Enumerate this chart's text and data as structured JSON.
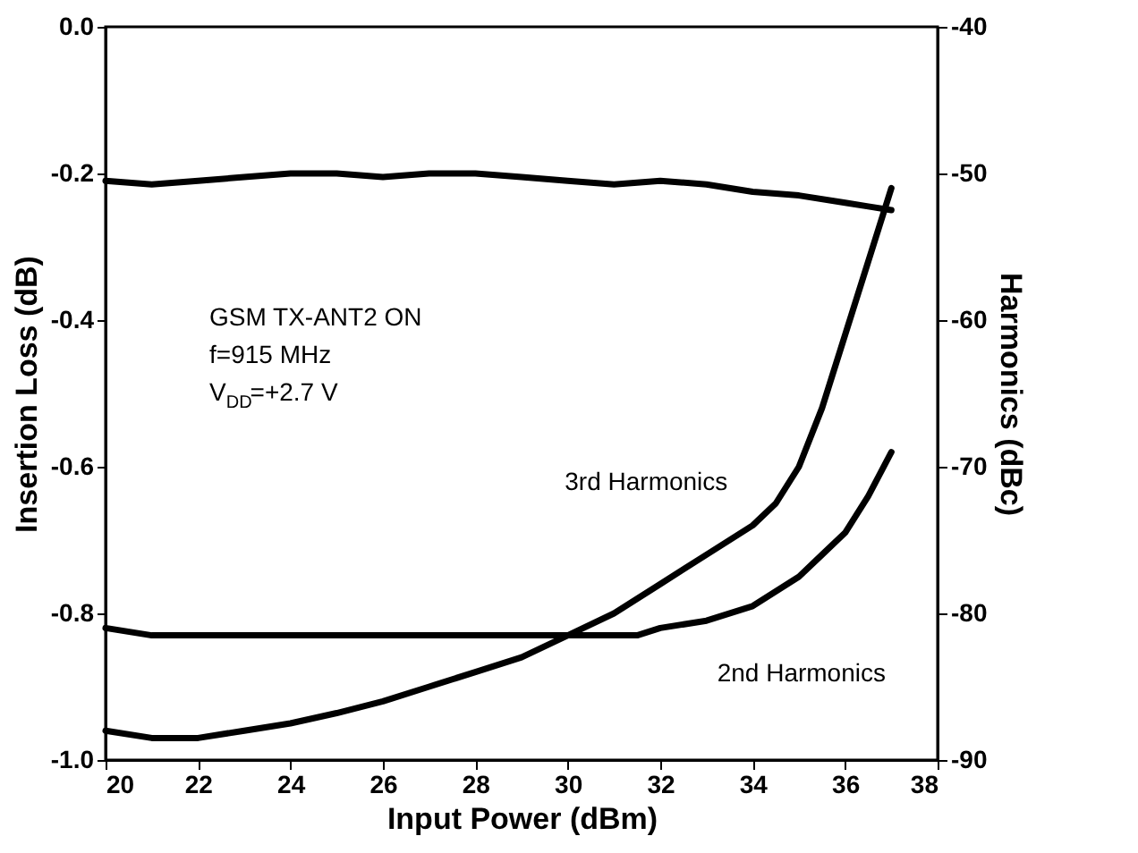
{
  "chart_data": {
    "type": "line",
    "xlabel": "Input Power (dBm)",
    "ylabel": "Insertion Loss (dB)",
    "y2label": "Harmonics (dBc)",
    "xlim": [
      20,
      38
    ],
    "xticks": [
      20,
      22,
      24,
      26,
      28,
      30,
      32,
      34,
      36,
      38
    ],
    "ylim": [
      -1.0,
      0.0
    ],
    "yticks": [
      {
        "value": -1.0,
        "label": "-1.0"
      },
      -0.8,
      -0.6,
      -0.4,
      -0.2,
      {
        "value": 0.0,
        "label": "0.0"
      }
    ],
    "y2lim": [
      -90,
      -40
    ],
    "y2ticks": [
      -90,
      -80,
      -70,
      -60,
      -50,
      -40
    ],
    "grid": false,
    "legend": false,
    "marker": "none",
    "line_style": "solid",
    "annotations": [
      "GSM TX-ANT2 ON",
      "f=915 MHz",
      "V$_{DD}$=+2.7 V"
    ],
    "series": [
      {
        "color": "#000000",
        "x": [
          20,
          21,
          22,
          23,
          24,
          25,
          26,
          27,
          28,
          29,
          30,
          31,
          32,
          33,
          34,
          35,
          36,
          36.5,
          37
        ],
        "values": [
          -0.21,
          -0.215,
          -0.21,
          -0.205,
          -0.2,
          -0.2,
          -0.205,
          -0.2,
          -0.2,
          -0.205,
          -0.21,
          -0.215,
          -0.21,
          -0.215,
          -0.225,
          -0.23,
          -0.24,
          -0.245,
          -0.25
        ]
      },
      {
        "name": "3rd Harmonics",
        "axis": "y2",
        "color": "#000000",
        "x": [
          20,
          21,
          22,
          23,
          24,
          25,
          26,
          27,
          28,
          29,
          30,
          31,
          32,
          33,
          34,
          34.5,
          35,
          35.5,
          36,
          36.5,
          37
        ],
        "values": [
          -88,
          -88.5,
          -88.5,
          -88,
          -87.5,
          -86.8,
          -86,
          -85,
          -84,
          -83,
          -81.5,
          -80,
          -78,
          -76,
          -74,
          -72.5,
          -70,
          -66,
          -61,
          -56,
          -51
        ]
      },
      {
        "name": "2nd Harmonics",
        "axis": "y2",
        "color": "#000000",
        "x": [
          20,
          21,
          22,
          24,
          26,
          28,
          30,
          31,
          31.5,
          32,
          33,
          34,
          35,
          35.5,
          36,
          36.5,
          37
        ],
        "values": [
          -81,
          -81.5,
          -81.5,
          -81.5,
          -81.5,
          -81.5,
          -81.5,
          -81.5,
          -81.5,
          -81,
          -80.5,
          -79.5,
          -77.5,
          -76,
          -74.5,
          -72,
          -69
        ]
      }
    ]
  }
}
